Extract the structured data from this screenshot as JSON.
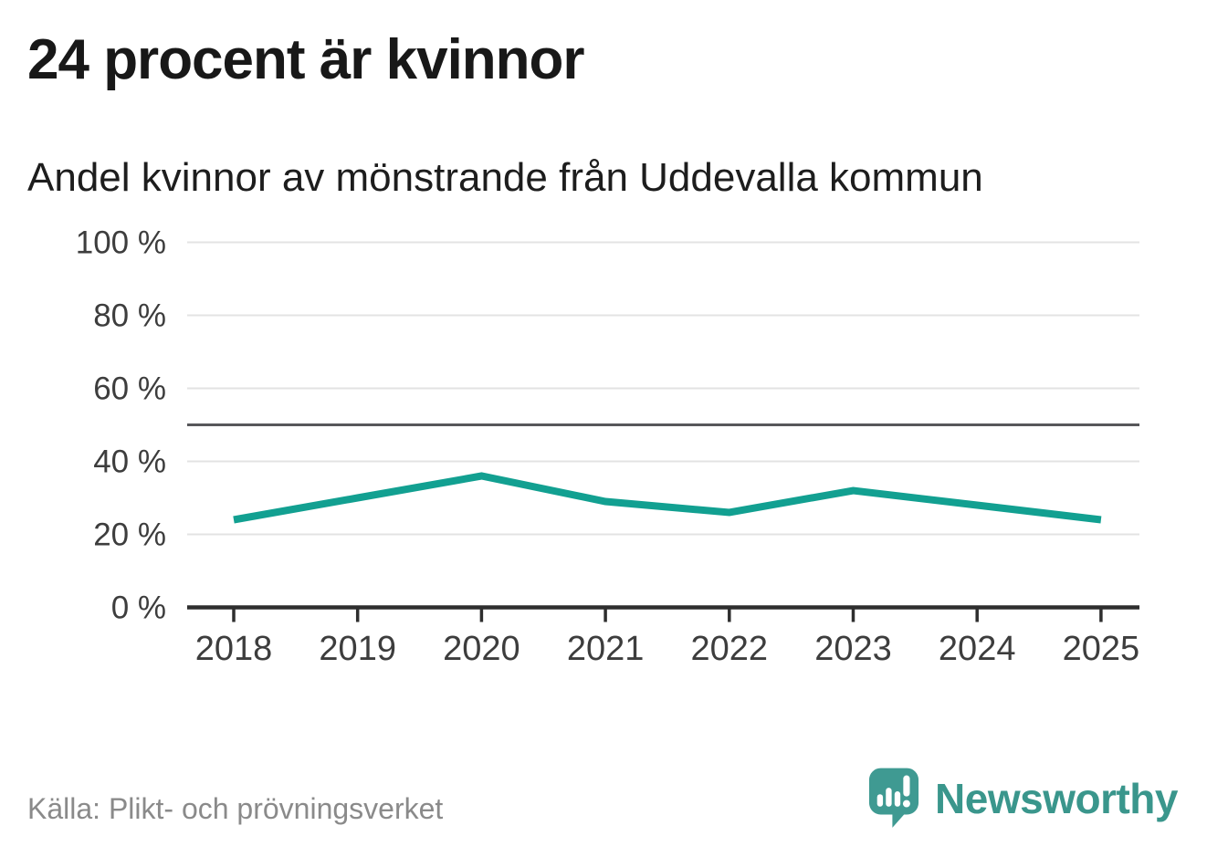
{
  "header": {
    "title": "24 procent är kvinnor"
  },
  "chart": {
    "subtitle": "Andel kvinnor av mönstrande från Uddevalla kommun"
  },
  "chart_data": {
    "type": "line",
    "title": "24 procent är kvinnor",
    "subtitle": "Andel kvinnor av mönstrande från Uddevalla kommun",
    "x": [
      "2018",
      "2019",
      "2020",
      "2021",
      "2022",
      "2023",
      "2024",
      "2025"
    ],
    "series": [
      {
        "name": "Andel kvinnor av mönstrande",
        "values": [
          24,
          30,
          36,
          29,
          26,
          32,
          28,
          24
        ],
        "color": "#12a091"
      }
    ],
    "unit": "%",
    "ylim": [
      0,
      100
    ],
    "yticks": [
      0,
      20,
      40,
      60,
      80,
      100
    ],
    "ytick_suffix": " %",
    "reference_line": {
      "value": 50,
      "color": "#57575a"
    },
    "grid": "horizontal",
    "legend": "none"
  },
  "footer": {
    "source": "Källa: Plikt- och prövningsverket",
    "brand": {
      "name": "Newsworthy",
      "icon": "newsworthy-logo-icon",
      "color": "#3a968c"
    }
  },
  "colors": {
    "line": "#12a091",
    "grid": "#e3e3e3",
    "axis": "#2e2e2e",
    "reference": "#57575a",
    "title_text": "#181818",
    "tick_text": "#3d3d3d",
    "muted_text": "#8a8a8a",
    "logo_teal": "#3f9a92"
  }
}
